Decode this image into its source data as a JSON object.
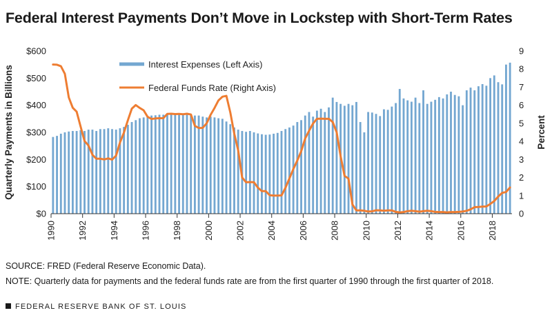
{
  "title": "Federal Interest Payments Don’t Move in Lockstep with Short-Term Rates",
  "source": "SOURCE: FRED (Federal Reserve Economic Data).",
  "note": "NOTE: Quarterly data for payments and the federal funds rate are from the first quarter of 1990 through the first quarter of 2018.",
  "footer": "FEDERAL RESERVE BANK OF ST. LOUIS",
  "colors": {
    "bars": "#74a7d1",
    "line": "#ee7d32"
  },
  "chart_data": {
    "type": "bar+line",
    "ylabel_left": "Quarterly Payments in Billions",
    "ylabel_right": "Percent",
    "left_ticks": [
      "$0",
      "$100",
      "$200",
      "$300",
      "$400",
      "$500",
      "$600"
    ],
    "right_ticks": [
      "0",
      "1",
      "2",
      "3",
      "4",
      "5",
      "6",
      "7",
      "8",
      "9"
    ],
    "x_ticks": [
      "1990",
      "1992",
      "1994",
      "1996",
      "1998",
      "2000",
      "2002",
      "2004",
      "2006",
      "2008",
      "2010",
      "2012",
      "2014",
      "2016",
      "2018"
    ],
    "ylim_left": [
      0,
      600
    ],
    "ylim_right": [
      0,
      9
    ],
    "legend_position": "top-center",
    "series": [
      {
        "name": "Interest Expenses (Left Axis)",
        "axis": "left",
        "type": "bar",
        "values": [
          283,
          287,
          295,
          300,
          303,
          305,
          305,
          308,
          305,
          310,
          310,
          305,
          312,
          312,
          315,
          312,
          310,
          315,
          320,
          328,
          338,
          345,
          352,
          355,
          360,
          362,
          363,
          365,
          365,
          368,
          370,
          367,
          367,
          370,
          368,
          366,
          362,
          362,
          358,
          355,
          358,
          355,
          352,
          350,
          340,
          330,
          318,
          310,
          305,
          302,
          305,
          300,
          296,
          293,
          291,
          292,
          295,
          298,
          305,
          312,
          318,
          325,
          338,
          345,
          362,
          375,
          358,
          380,
          387,
          375,
          392,
          428,
          412,
          405,
          398,
          405,
          400,
          412,
          338,
          300,
          375,
          373,
          368,
          360,
          385,
          383,
          395,
          408,
          460,
          425,
          418,
          413,
          428,
          408,
          455,
          405,
          413,
          420,
          430,
          425,
          440,
          450,
          438,
          433,
          400,
          455,
          465,
          455,
          470,
          478,
          472,
          500,
          510,
          485,
          477,
          550,
          557
        ]
      },
      {
        "name": "Federal Funds Rate (Right Axis)",
        "axis": "right",
        "type": "line",
        "values": [
          8.25,
          8.24,
          8.16,
          7.74,
          6.43,
          5.86,
          5.64,
          4.82,
          4.02,
          3.77,
          3.26,
          3.04,
          3.04,
          3.0,
          3.06,
          2.99,
          3.21,
          3.94,
          4.49,
          5.17,
          5.81,
          6.01,
          5.85,
          5.72,
          5.36,
          5.24,
          5.27,
          5.28,
          5.28,
          5.52,
          5.53,
          5.51,
          5.52,
          5.5,
          5.53,
          5.49,
          4.86,
          4.74,
          4.75,
          5.0,
          5.47,
          5.85,
          6.27,
          6.47,
          6.52,
          5.6,
          4.43,
          3.5,
          2.0,
          1.74,
          1.75,
          1.74,
          1.44,
          1.25,
          1.25,
          1.02,
          1.0,
          1.0,
          1.01,
          1.43,
          1.95,
          2.47,
          2.94,
          3.46,
          4.16,
          4.59,
          4.99,
          5.25,
          5.26,
          5.25,
          5.25,
          5.07,
          4.5,
          3.18,
          2.09,
          1.94,
          0.51,
          0.18,
          0.18,
          0.16,
          0.12,
          0.13,
          0.19,
          0.18,
          0.16,
          0.18,
          0.18,
          0.1,
          0.07,
          0.09,
          0.14,
          0.16,
          0.14,
          0.11,
          0.14,
          0.16,
          0.14,
          0.1,
          0.09,
          0.09,
          0.07,
          0.09,
          0.09,
          0.1,
          0.12,
          0.16,
          0.24,
          0.36,
          0.37,
          0.39,
          0.4,
          0.54,
          0.7,
          0.95,
          1.15,
          1.2,
          1.45
        ]
      }
    ]
  }
}
